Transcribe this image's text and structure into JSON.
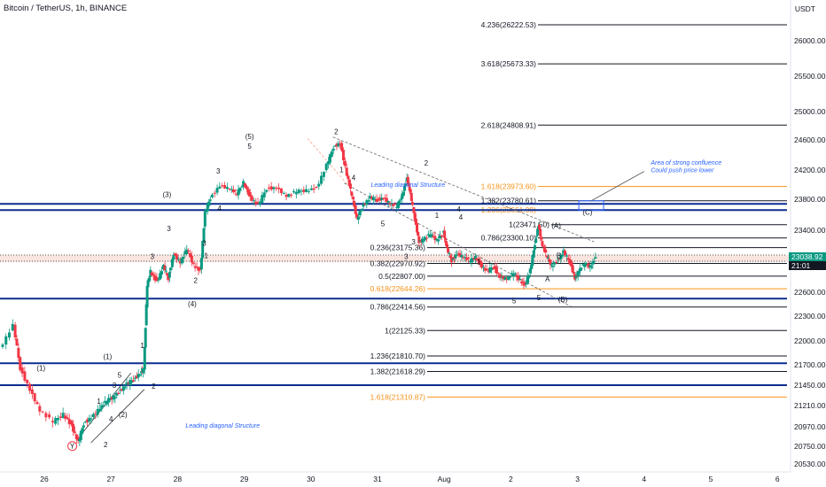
{
  "header": {
    "title": "Bitcoin / TetherUS, 1h, BINANCE",
    "currency": "USDT",
    "price_tag": "23038.92",
    "countdown_tag": "21:01"
  },
  "chart_data": {
    "type": "candlestick",
    "symbol": "Bitcoin / TetherUS",
    "interval": "1h",
    "exchange": "BINANCE",
    "ylim": [
      20530,
      26420
    ],
    "y_ticks": [
      {
        "value": 26000,
        "label": "26000.00"
      },
      {
        "value": 25500,
        "label": "25500.00"
      },
      {
        "value": 25000,
        "label": "25000.00"
      },
      {
        "value": 24600,
        "label": "24600.00"
      },
      {
        "value": 24200,
        "label": "24200.00"
      },
      {
        "value": 23800,
        "label": "23800.00"
      },
      {
        "value": 23400,
        "label": "23400.00"
      },
      {
        "value": 22600,
        "label": "22600.00"
      },
      {
        "value": 22300,
        "label": "22300.00"
      },
      {
        "value": 22000,
        "label": "22000.00"
      },
      {
        "value": 21700,
        "label": "21700.00"
      },
      {
        "value": 21450,
        "label": "21450.00"
      },
      {
        "value": 21210,
        "label": "21210.00"
      },
      {
        "value": 20970,
        "label": "20970.00"
      },
      {
        "value": 20750,
        "label": "20750.00"
      },
      {
        "value": 20530,
        "label": "20530.00"
      }
    ],
    "x_ticks": [
      {
        "value": 0,
        "label": "26"
      },
      {
        "value": 1,
        "label": "27"
      },
      {
        "value": 2,
        "label": "28"
      },
      {
        "value": 3,
        "label": "29"
      },
      {
        "value": 4,
        "label": "30"
      },
      {
        "value": 5,
        "label": "31"
      },
      {
        "value": 6,
        "label": "Aug"
      },
      {
        "value": 7,
        "label": "2"
      },
      {
        "value": 8,
        "label": "3"
      },
      {
        "value": 9,
        "label": "4"
      },
      {
        "value": 10,
        "label": "5"
      },
      {
        "value": 11,
        "label": "6"
      }
    ],
    "last_price": 23038.92,
    "price_path": [
      [
        -0.65,
        21900
      ],
      [
        -0.45,
        22180
      ],
      [
        -0.35,
        21660
      ],
      [
        -0.2,
        21400
      ],
      [
        -0.05,
        21150
      ],
      [
        0.15,
        21020
      ],
      [
        0.3,
        21120
      ],
      [
        0.42,
        20980
      ],
      [
        0.52,
        20790
      ],
      [
        0.6,
        21010
      ],
      [
        0.72,
        21080
      ],
      [
        0.85,
        21180
      ],
      [
        0.95,
        21260
      ],
      [
        1.05,
        21320
      ],
      [
        1.15,
        21380
      ],
      [
        1.25,
        21460
      ],
      [
        1.35,
        21520
      ],
      [
        1.45,
        21600
      ],
      [
        1.5,
        21650
      ],
      [
        1.55,
        22680
      ],
      [
        1.6,
        22880
      ],
      [
        1.7,
        22730
      ],
      [
        1.8,
        22930
      ],
      [
        1.87,
        22780
      ],
      [
        1.95,
        23100
      ],
      [
        2.05,
        22980
      ],
      [
        2.15,
        23150
      ],
      [
        2.25,
        22960
      ],
      [
        2.35,
        22870
      ],
      [
        2.42,
        23620
      ],
      [
        2.5,
        23820
      ],
      [
        2.65,
        23990
      ],
      [
        2.8,
        23940
      ],
      [
        2.9,
        23870
      ],
      [
        3.0,
        24040
      ],
      [
        3.1,
        23820
      ],
      [
        3.22,
        23720
      ],
      [
        3.35,
        23950
      ],
      [
        3.5,
        23960
      ],
      [
        3.65,
        23840
      ],
      [
        3.8,
        23900
      ],
      [
        3.95,
        23930
      ],
      [
        4.1,
        23950
      ],
      [
        4.25,
        24260
      ],
      [
        4.35,
        24510
      ],
      [
        4.45,
        24560
      ],
      [
        4.55,
        24130
      ],
      [
        4.62,
        23850
      ],
      [
        4.7,
        23560
      ],
      [
        4.8,
        23720
      ],
      [
        4.9,
        23820
      ],
      [
        5.0,
        23790
      ],
      [
        5.1,
        23820
      ],
      [
        5.2,
        23740
      ],
      [
        5.3,
        23700
      ],
      [
        5.38,
        23870
      ],
      [
        5.45,
        24080
      ],
      [
        5.5,
        23870
      ],
      [
        5.57,
        23540
      ],
      [
        5.63,
        23250
      ],
      [
        5.7,
        23280
      ],
      [
        5.8,
        23340
      ],
      [
        5.9,
        23280
      ],
      [
        6.0,
        23370
      ],
      [
        6.05,
        23150
      ],
      [
        6.12,
        23010
      ],
      [
        6.2,
        23100
      ],
      [
        6.3,
        23050
      ],
      [
        6.4,
        23000
      ],
      [
        6.48,
        23060
      ],
      [
        6.55,
        22960
      ],
      [
        6.65,
        22860
      ],
      [
        6.75,
        22930
      ],
      [
        6.85,
        22800
      ],
      [
        6.95,
        22770
      ],
      [
        7.05,
        22840
      ],
      [
        7.15,
        22760
      ],
      [
        7.22,
        22680
      ],
      [
        7.3,
        22880
      ],
      [
        7.37,
        23230
      ],
      [
        7.42,
        23470
      ],
      [
        7.48,
        23200
      ],
      [
        7.55,
        23050
      ],
      [
        7.62,
        22950
      ],
      [
        7.72,
        23010
      ],
      [
        7.8,
        23120
      ],
      [
        7.9,
        22980
      ],
      [
        7.97,
        22780
      ],
      [
        8.03,
        22880
      ],
      [
        8.12,
        22960
      ],
      [
        8.2,
        22940
      ],
      [
        8.28,
        23038
      ]
    ],
    "horizontal_levels": [
      {
        "price": 26222.53,
        "label": "4.236(26222.53)",
        "color": "#131722",
        "style": "fib"
      },
      {
        "price": 25673.33,
        "label": "3.618(25673.33)",
        "color": "#131722",
        "style": "fib"
      },
      {
        "price": 24808.91,
        "label": "2.618(24808.91)",
        "color": "#131722",
        "style": "fib"
      },
      {
        "price": 23973.6,
        "label": "1.618(23973.60)",
        "color": "#f7931a",
        "style": "fib"
      },
      {
        "price": 23780.61,
        "label": "1.382(23780.61)",
        "color": "#131722",
        "style": "fib"
      },
      {
        "price": 23661.99,
        "label": "1.236(23661.99)",
        "color": "#f7931a",
        "style": "fib"
      },
      {
        "price": 23471.5,
        "label": "1(23471.50)",
        "color": "#131722",
        "style": "fib"
      },
      {
        "price": 23300.1,
        "label": "0.786(23300.10)",
        "color": "#131722",
        "style": "fib"
      },
      {
        "price": 23175.36,
        "label": "0.236(23175.36)",
        "color": "#131722",
        "style": "fib"
      },
      {
        "price": 22970.92,
        "label": "0.382(22970.92)",
        "color": "#131722",
        "style": "fib"
      },
      {
        "price": 22807.0,
        "label": "0.5(22807.00)",
        "color": "#131722",
        "style": "fib"
      },
      {
        "price": 22644.26,
        "label": "0.618(22644.26)",
        "color": "#f7931a",
        "style": "fib"
      },
      {
        "price": 22414.56,
        "label": "0.786(22414.56)",
        "color": "#131722",
        "style": "fib"
      },
      {
        "price": 22125.33,
        "label": "1(22125.33)",
        "color": "#131722",
        "style": "fib"
      },
      {
        "price": 21810.7,
        "label": "1.236(21810.70)",
        "color": "#131722",
        "style": "fib"
      },
      {
        "price": 21618.29,
        "label": "1.382(21618.29)",
        "color": "#131722",
        "style": "fib"
      },
      {
        "price": 21310.87,
        "label": "1.618(21310.87)",
        "color": "#f7931a",
        "style": "fib"
      }
    ],
    "blue_levels": [
      23740,
      23660,
      22520,
      21720,
      21450
    ],
    "dotted_levels": [
      23080,
      23000
    ],
    "wave_labels": [
      {
        "x": 0.92,
        "price": 20740,
        "text": "2"
      },
      {
        "x": 0.82,
        "price": 21230,
        "text": "1"
      },
      {
        "x": 1.05,
        "price": 21420,
        "text": "3"
      },
      {
        "x": 1.0,
        "price": 21030,
        "text": "4"
      },
      {
        "x": 1.13,
        "price": 21540,
        "text": "5"
      },
      {
        "x": -0.05,
        "price": 21630,
        "text": "(1)"
      },
      {
        "x": 0.95,
        "price": 21770,
        "text": "(1)"
      },
      {
        "x": 1.18,
        "price": 21080,
        "text": "(2)"
      },
      {
        "x": 1.47,
        "price": 21910,
        "text": "1"
      },
      {
        "x": 1.64,
        "price": 21410,
        "text": "2"
      },
      {
        "x": 1.62,
        "price": 23030,
        "text": "3"
      },
      {
        "x": 2.43,
        "price": 23040,
        "text": "1"
      },
      {
        "x": 2.27,
        "price": 22720,
        "text": "2"
      },
      {
        "x": 2.4,
        "price": 23200,
        "text": "3"
      },
      {
        "x": 2.63,
        "price": 23650,
        "text": "4"
      },
      {
        "x": 2.61,
        "price": 24150,
        "text": "3"
      },
      {
        "x": 1.87,
        "price": 23390,
        "text": "3"
      },
      {
        "x": 1.84,
        "price": 23830,
        "text": "(3)"
      },
      {
        "x": 2.22,
        "price": 22420,
        "text": "(4)"
      },
      {
        "x": 3.08,
        "price": 24610,
        "text": "(5)"
      },
      {
        "x": 3.08,
        "price": 24480,
        "text": "5"
      },
      {
        "x": 4.38,
        "price": 24680,
        "text": "2"
      },
      {
        "x": 4.46,
        "price": 24170,
        "text": "1"
      },
      {
        "x": 4.64,
        "price": 24060,
        "text": "4"
      },
      {
        "x": 5.08,
        "price": 23450,
        "text": "5"
      },
      {
        "x": 5.54,
        "price": 23220,
        "text": "3"
      },
      {
        "x": 6.22,
        "price": 23640,
        "text": "4"
      },
      {
        "x": 6.52,
        "price": 22960,
        "text": "1"
      },
      {
        "x": 7.42,
        "price": 22500,
        "text": "5"
      },
      {
        "x": 7.68,
        "price": 23430,
        "text": "(A)"
      },
      {
        "x": 7.72,
        "price": 23040,
        "text": "B"
      },
      {
        "x": 7.55,
        "price": 22740,
        "text": "A"
      },
      {
        "x": 7.78,
        "price": 22480,
        "text": "(B)"
      }
    ],
    "blue_wave_labels": [
      {
        "x": 5.73,
        "price": 24260,
        "text": "2"
      },
      {
        "x": 5.43,
        "price": 23030,
        "text": "3"
      },
      {
        "x": 5.89,
        "price": 23560,
        "text": "1"
      },
      {
        "x": 6.25,
        "price": 23540,
        "text": "4"
      },
      {
        "x": 7.05,
        "price": 22460,
        "text": "5"
      }
    ],
    "y_label": {
      "x": 0.42,
      "price": 20720,
      "text": "Y"
    },
    "c_label": {
      "x": 8.15,
      "price": 23600,
      "text": "(C)"
    },
    "annotations": [
      {
        "text": "Leading diagonal Structure",
        "x": 4.9,
        "price": 23970,
        "color": "#2962ff"
      },
      {
        "text": "Leading diagonal Structure",
        "x": 2.12,
        "price": 20960,
        "color": "#131722"
      },
      {
        "text": "Area of strong confluence",
        "x": 9.1,
        "price": 24270,
        "color": "#2962ff"
      },
      {
        "text": "Could push price lower",
        "x": 9.1,
        "price": 24170,
        "color": "#2962ff"
      }
    ],
    "current_price_label": "23038.92",
    "countdown_label": "21:01"
  }
}
